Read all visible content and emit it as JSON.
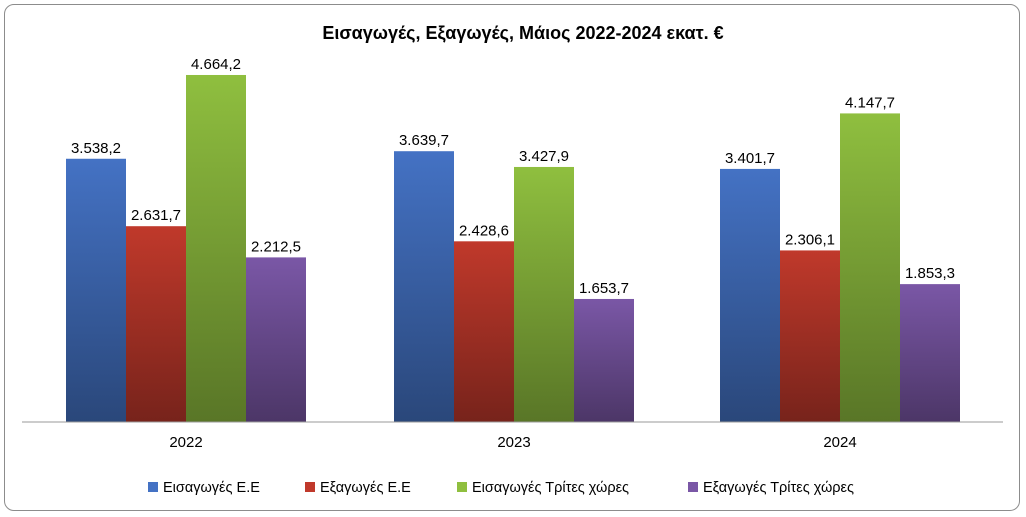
{
  "chart_data": {
    "type": "bar",
    "title": "Εισαγωγές, Εξαγωγές, Μάιος 2022-2024 εκατ. €",
    "xlabel": "",
    "ylabel": "",
    "categories": [
      "2022",
      "2023",
      "2024"
    ],
    "series": [
      {
        "name": "Εισαγωγές Ε.Ε",
        "values": [
          3538.2,
          3639.7,
          3401.7
        ],
        "labels": [
          "3.538,2",
          "3.639,7",
          "3.401,7"
        ],
        "color": "#4472c4"
      },
      {
        "name": "Εξαγωγές  Ε.Ε",
        "values": [
          2631.7,
          2428.6,
          2306.1
        ],
        "labels": [
          "2.631,7",
          "2.428,6",
          "2.306,1"
        ],
        "color": "#c0392b"
      },
      {
        "name": "Εισαγωγές Τρίτες χώρες",
        "values": [
          4664.2,
          3427.9,
          4147.7
        ],
        "labels": [
          "4.664,2",
          "3.427,9",
          "4.147,7"
        ],
        "color": "#8fbf3f"
      },
      {
        "name": "Εξαγωγές Τρίτες χώρες",
        "values": [
          2212.5,
          1653.7,
          1853.3
        ],
        "labels": [
          "2.212,5",
          "1.653,7",
          "1.853,3"
        ],
        "color": "#7a57a6"
      }
    ],
    "ylim": [
      0,
      5000
    ],
    "grid": false,
    "legend_position": "bottom"
  }
}
